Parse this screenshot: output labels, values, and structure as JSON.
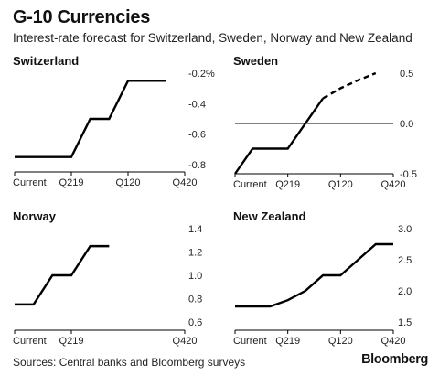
{
  "title": "G-10 Currencies",
  "subtitle": "Interest-rate forecast for Switzerland, Sweden, Norway and New Zealand",
  "source": "Sources: Central banks and Bloomberg surveys",
  "brand": "Bloomberg",
  "chart_data": [
    {
      "type": "line",
      "title": "Switzerland",
      "x_tick_labels": [
        "Current",
        "Q219",
        "Q120",
        "Q420"
      ],
      "y_tick_labels": [
        "-0.2%",
        "-0.4",
        "-0.6",
        "-0.8"
      ],
      "ylim": [
        -0.8,
        -0.2
      ],
      "y_ticks": [
        -0.2,
        -0.4,
        -0.6,
        -0.8
      ],
      "x_ticks": [
        0,
        3,
        6,
        9
      ],
      "xlim": [
        0,
        9
      ],
      "axis_position": "right",
      "zero_line": null,
      "series": [
        {
          "x": [
            0,
            1,
            2,
            3,
            4,
            5,
            6,
            7,
            8
          ],
          "y": [
            -0.75,
            -0.75,
            -0.75,
            -0.75,
            -0.5,
            -0.5,
            -0.25,
            -0.25,
            -0.25
          ],
          "style": "solid"
        }
      ]
    },
    {
      "type": "line",
      "title": "Sweden",
      "x_tick_labels": [
        "Current",
        "Q219",
        "Q120",
        "Q420"
      ],
      "y_tick_labels": [
        "0.5",
        "0.0",
        "-0.5"
      ],
      "ylim": [
        -0.5,
        0.5
      ],
      "y_ticks": [
        0.5,
        0.0,
        -0.5
      ],
      "x_ticks": [
        0,
        3,
        6,
        9
      ],
      "xlim": [
        0,
        9
      ],
      "axis_position": "right",
      "zero_line": 0,
      "series": [
        {
          "x": [
            0,
            1,
            2,
            3,
            4,
            5
          ],
          "y": [
            -0.5,
            -0.25,
            -0.25,
            -0.25,
            0.0,
            0.25
          ],
          "style": "solid"
        },
        {
          "x": [
            5,
            6,
            7,
            8
          ],
          "y": [
            0.25,
            0.35,
            0.43,
            0.5
          ],
          "style": "dashed"
        }
      ]
    },
    {
      "type": "line",
      "title": "Norway",
      "x_tick_labels": [
        "Current",
        "Q219",
        "Q420"
      ],
      "x_ticks": [
        0,
        3,
        9
      ],
      "xlim": [
        0,
        9
      ],
      "y_tick_labels": [
        "1.4",
        "1.2",
        "1.0",
        "0.8",
        "0.6"
      ],
      "ylim": [
        0.6,
        1.4
      ],
      "y_ticks": [
        1.4,
        1.2,
        1.0,
        0.8,
        0.6
      ],
      "axis_position": "right",
      "zero_line": null,
      "series": [
        {
          "x": [
            0,
            1,
            2,
            3,
            4,
            5
          ],
          "y": [
            0.75,
            0.75,
            1.0,
            1.0,
            1.25,
            1.25
          ],
          "style": "solid"
        }
      ]
    },
    {
      "type": "line",
      "title": "New Zealand",
      "x_tick_labels": [
        "Current",
        "Q219",
        "Q120",
        "Q420"
      ],
      "y_tick_labels": [
        "3.0",
        "2.5",
        "2.0",
        "1.5"
      ],
      "ylim": [
        1.5,
        3.0
      ],
      "y_ticks": [
        3.0,
        2.5,
        2.0,
        1.5
      ],
      "x_ticks": [
        0,
        3,
        6,
        9
      ],
      "xlim": [
        0,
        9
      ],
      "axis_position": "right",
      "zero_line": null,
      "series": [
        {
          "x": [
            0,
            1,
            2,
            3,
            4,
            5,
            6,
            7,
            8,
            9
          ],
          "y": [
            1.75,
            1.75,
            1.75,
            1.85,
            2.0,
            2.25,
            2.25,
            2.5,
            2.75,
            2.75
          ],
          "style": "solid"
        }
      ]
    }
  ]
}
